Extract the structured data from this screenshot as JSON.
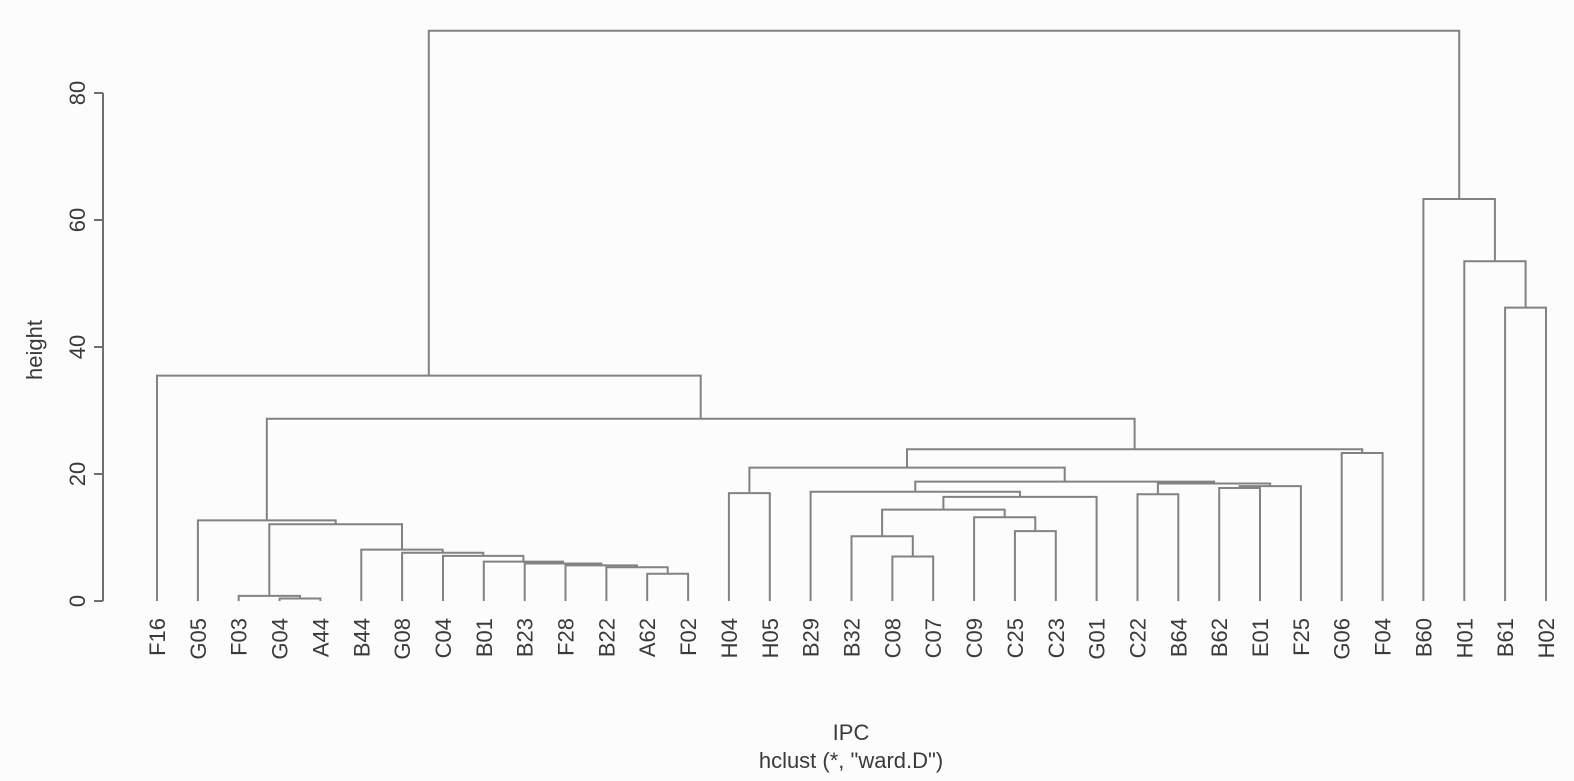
{
  "figure": {
    "background_color": "#fcfcfc",
    "tree_line_color": "#828282",
    "axis_line_color": "#6e6e6e",
    "text_color": "#3a3a3a"
  },
  "chart_data": {
    "type": "dendrogram",
    "xlabel": "IPC",
    "sub_xlabel": "hclust (*, \"ward.D\")",
    "ylabel": "height",
    "y_ticks": [
      0,
      20,
      40,
      60,
      80
    ],
    "ylim": [
      0,
      90
    ],
    "grid": "off",
    "legend": "none",
    "leaves": [
      "F16",
      "G05",
      "F03",
      "G04",
      "A44",
      "B44",
      "G08",
      "C04",
      "B01",
      "B23",
      "F28",
      "B22",
      "A62",
      "F02",
      "H04",
      "H05",
      "B29",
      "B32",
      "C08",
      "C07",
      "C09",
      "C25",
      "C23",
      "G01",
      "C22",
      "B64",
      "B62",
      "E01",
      "F25",
      "G06",
      "F04",
      "B60",
      "H01",
      "B61",
      "H02"
    ],
    "merges_note": "[left, right, height]; negative = leaf index (1-based into leaves[]), positive = earlier merge row (1-based)",
    "merges": [
      [
        -4,
        -5,
        0.4
      ],
      [
        -3,
        1,
        0.8
      ],
      [
        -13,
        -14,
        4.3
      ],
      [
        -12,
        3,
        5.3
      ],
      [
        -11,
        4,
        5.6
      ],
      [
        -10,
        5,
        5.9
      ],
      [
        -9,
        6,
        6.2
      ],
      [
        -8,
        7,
        7.1
      ],
      [
        -7,
        8,
        7.6
      ],
      [
        -6,
        9,
        8.1
      ],
      [
        2,
        10,
        12.1
      ],
      [
        -2,
        11,
        12.7
      ],
      [
        -19,
        -20,
        7.0
      ],
      [
        -18,
        13,
        10.2
      ],
      [
        -22,
        -23,
        11.0
      ],
      [
        -21,
        15,
        13.2
      ],
      [
        14,
        16,
        14.4
      ],
      [
        17,
        -24,
        16.4
      ],
      [
        -17,
        18,
        17.2
      ],
      [
        -25,
        -26,
        16.8
      ],
      [
        -27,
        -28,
        17.8
      ],
      [
        21,
        -29,
        18.1
      ],
      [
        20,
        22,
        18.5
      ],
      [
        19,
        23,
        18.8
      ],
      [
        -15,
        -16,
        17.0
      ],
      [
        25,
        24,
        21.0
      ],
      [
        -30,
        -31,
        23.3
      ],
      [
        26,
        27,
        23.9
      ],
      [
        12,
        28,
        28.7
      ],
      [
        -1,
        29,
        35.5
      ],
      [
        -34,
        -35,
        46.2
      ],
      [
        -33,
        31,
        53.5
      ],
      [
        -32,
        32,
        63.3
      ],
      [
        30,
        33,
        89.8
      ]
    ]
  }
}
